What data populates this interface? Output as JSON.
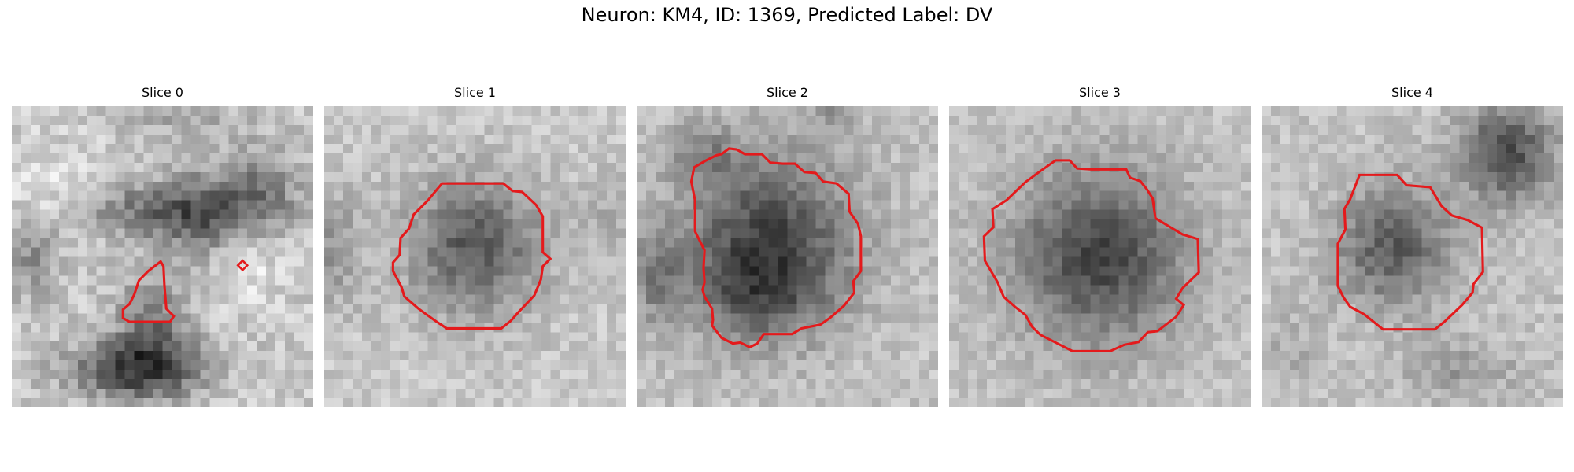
{
  "figure": {
    "title": "Neuron: KM4, ID: 1369, Predicted Label: DV",
    "grid_size": 32,
    "contour_color": "#e41a1c"
  },
  "panels": [
    {
      "title": "Slice 0"
    },
    {
      "title": "Slice 1"
    },
    {
      "title": "Slice 2"
    },
    {
      "title": "Slice 3"
    },
    {
      "title": "Slice 4"
    }
  ]
}
